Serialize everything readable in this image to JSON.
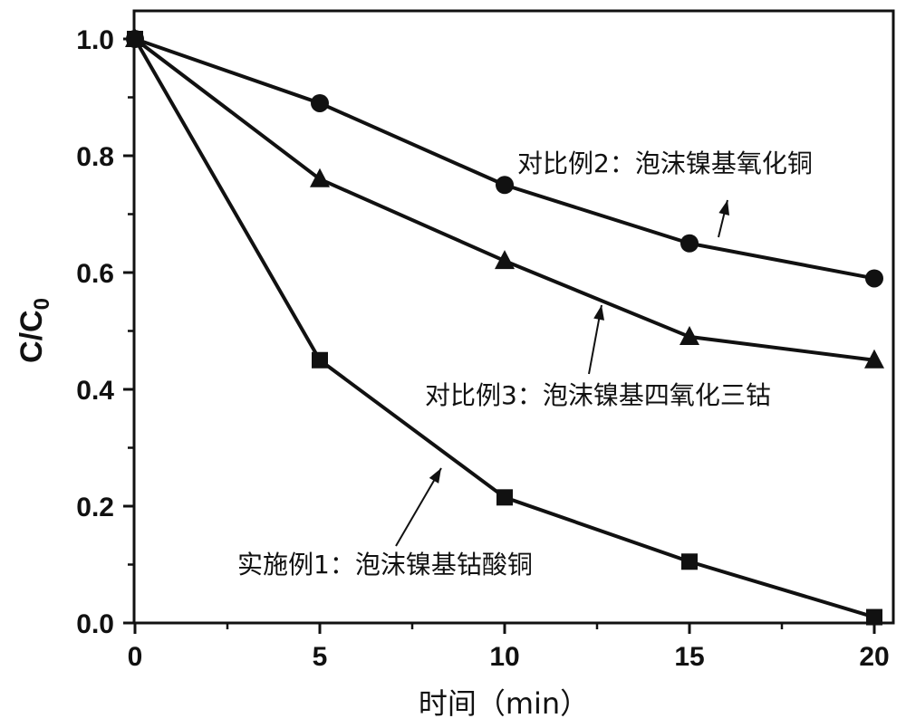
{
  "chart_data": {
    "type": "line",
    "xlabel": "时间（min）",
    "ylabel_main": "C/C",
    "ylabel_sub": "0",
    "xlim": [
      0,
      20
    ],
    "ylim": [
      0,
      1.0
    ],
    "x_ticks": [
      "0",
      "5",
      "10",
      "15",
      "20"
    ],
    "y_ticks": [
      "0.0",
      "0.2",
      "0.4",
      "0.6",
      "0.8",
      "1.0"
    ],
    "grid": false,
    "x": [
      0,
      5,
      10,
      15,
      20
    ],
    "series": [
      {
        "name": "实施例1：泡沫镍基钴酸铜",
        "marker": "square",
        "values": [
          1.0,
          0.45,
          0.215,
          0.105,
          0.01
        ]
      },
      {
        "name": "对比例2：泡沫镍基氧化铜",
        "marker": "circle",
        "values": [
          1.0,
          0.89,
          0.75,
          0.65,
          0.59
        ]
      },
      {
        "name": "对比例3：泡沫镍基四氧化三钴",
        "marker": "triangle",
        "values": [
          1.0,
          0.76,
          0.62,
          0.49,
          0.45
        ]
      }
    ],
    "annotations": [
      {
        "text": "对比例2：泡沫镍基氧化铜",
        "series": 1
      },
      {
        "text": "对比例3：泡沫镍基四氧化三钴",
        "series": 2
      },
      {
        "text": "实施例1：泡沫镍基钴酸铜",
        "series": 0
      }
    ],
    "colors": {
      "line": "#111111",
      "axis": "#111111"
    }
  }
}
